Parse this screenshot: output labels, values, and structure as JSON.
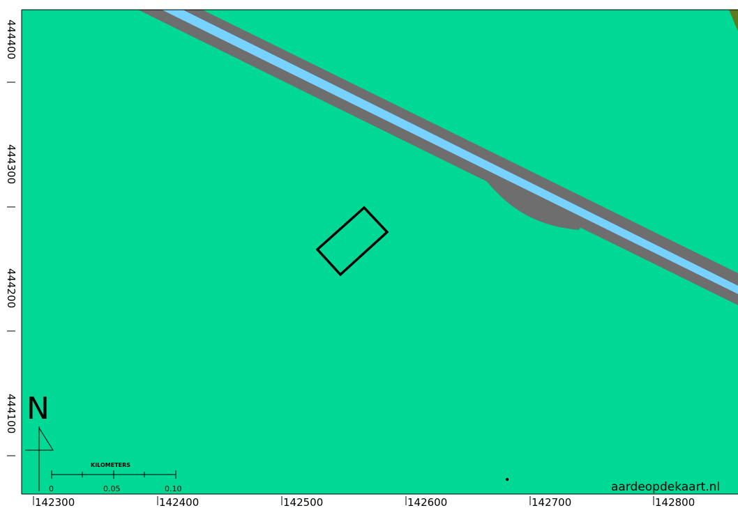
{
  "map": {
    "colors": {
      "land": "#00d896",
      "road": "#6e6e6e",
      "water": "#78d2ff",
      "outline": "#000000"
    },
    "x_axis_labels": [
      "142300",
      "142400",
      "142500",
      "142600",
      "142700",
      "142800"
    ],
    "y_axis_labels": [
      "444400",
      "444300",
      "444200",
      "444100"
    ],
    "north_label": "N",
    "scale_bar": {
      "title": "KILOMETERS",
      "labels": [
        "0",
        "0.05",
        "0.10"
      ]
    },
    "credit": "aardeopdekaart.nl"
  }
}
